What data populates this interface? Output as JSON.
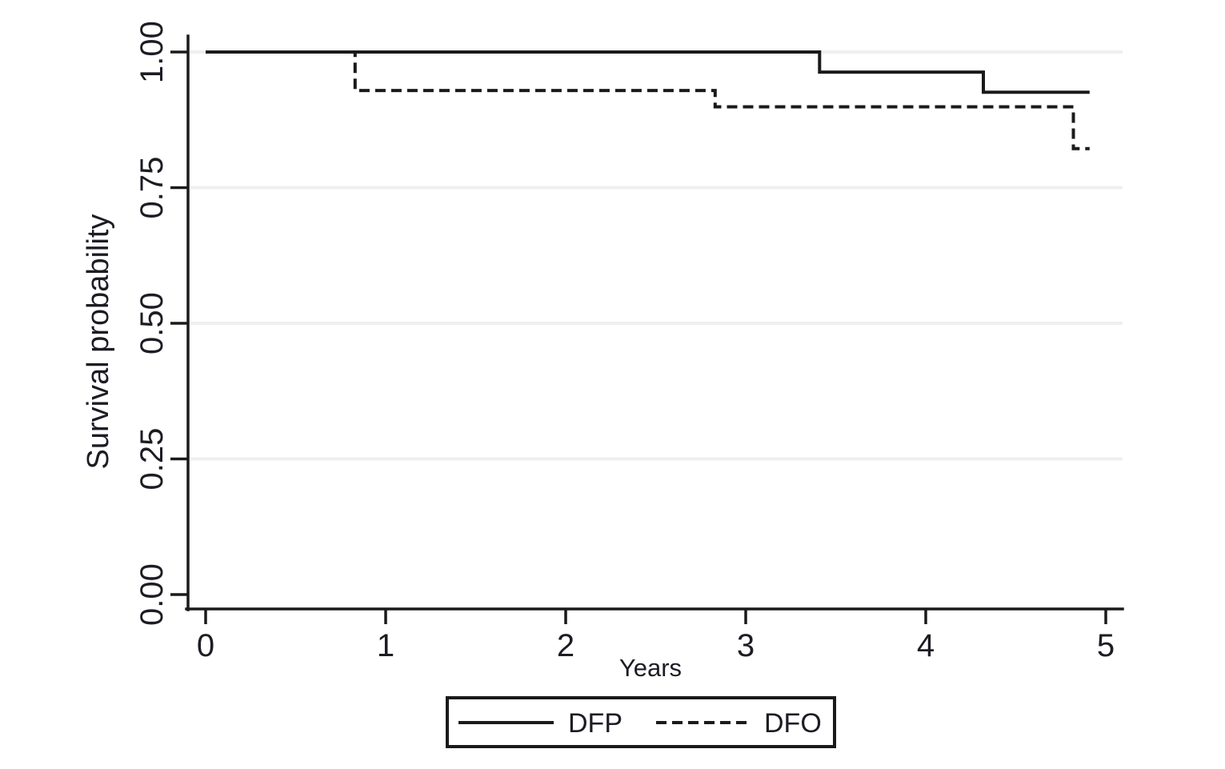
{
  "figure": {
    "kind": "kaplan-meier-survival-plot"
  },
  "chart_data": {
    "type": "line",
    "subtype": "survival-step",
    "title": "",
    "xlabel": "Years",
    "ylabel": "Survival probability",
    "xlim": [
      0,
      5
    ],
    "ylim": [
      0,
      1
    ],
    "grid": "horizontal-light-gray",
    "legend_position": "bottom-center-boxed",
    "xticks": [
      {
        "label": "0",
        "value": 0
      },
      {
        "label": "1",
        "value": 1
      },
      {
        "label": "2",
        "value": 2
      },
      {
        "label": "3",
        "value": 3
      },
      {
        "label": "4",
        "value": 4
      },
      {
        "label": "5",
        "value": 5
      }
    ],
    "yticks": [
      {
        "label": "0.00",
        "value": 0
      },
      {
        "label": "0.25",
        "value": 0.25
      },
      {
        "label": "0.50",
        "value": 0.5
      },
      {
        "label": "0.75",
        "value": 0.75
      },
      {
        "label": "1.00",
        "value": 1
      }
    ],
    "series": [
      {
        "name": "DFP",
        "line_style": "solid",
        "color": "#1a1a1a",
        "steps": [
          [
            0,
            1.0
          ],
          [
            3.41,
            1.0
          ],
          [
            3.41,
            0.963
          ],
          [
            4.32,
            0.963
          ],
          [
            4.32,
            0.926
          ],
          [
            4.91,
            0.926
          ]
        ]
      },
      {
        "name": "DFO",
        "line_style": "dashed",
        "color": "#1a1a1a",
        "steps": [
          [
            0,
            1.0
          ],
          [
            0.83,
            1.0
          ],
          [
            0.83,
            0.929
          ],
          [
            2.83,
            0.929
          ],
          [
            2.83,
            0.899
          ],
          [
            4.82,
            0.899
          ],
          [
            4.82,
            0.822
          ],
          [
            4.91,
            0.822
          ]
        ]
      }
    ]
  },
  "legend": {
    "items": [
      {
        "label": "DFP",
        "line_style": "solid"
      },
      {
        "label": "DFO",
        "line_style": "dashed"
      }
    ]
  },
  "colors": {
    "background": "#ffffff",
    "axis": "#1a1a1a",
    "line": "#1a1a1a",
    "grid": "#efefef",
    "text": "#1c1c24"
  }
}
